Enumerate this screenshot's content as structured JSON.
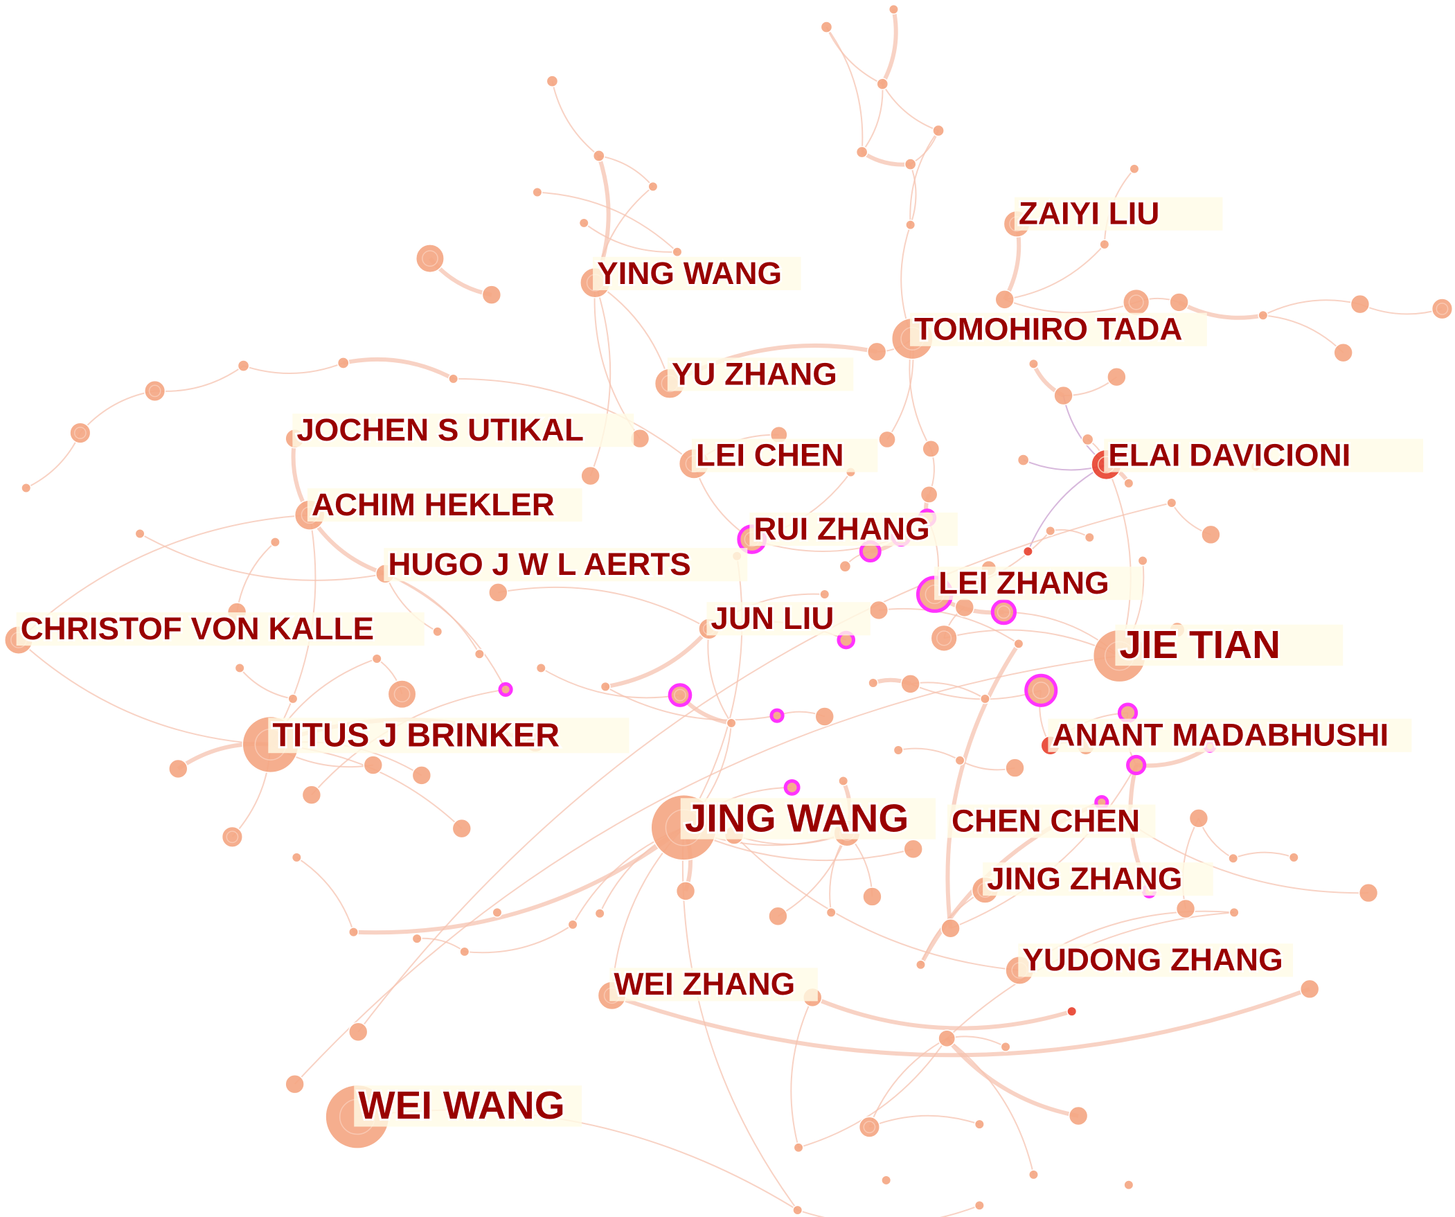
{
  "network": {
    "type": "co-authorship network",
    "colors": {
      "node": "#f4a582",
      "edge": "#f6c3b0",
      "burst_node": "#e8402e",
      "centrality_ring": "#ff33ff",
      "purple_edge": "#c9a0d0",
      "label": "#990000",
      "label_background": "#fffbe6"
    },
    "labels": [
      {
        "name": "ZAIYI LIU"
      },
      {
        "name": "YING WANG"
      },
      {
        "name": "TOMOHIRO TADA"
      },
      {
        "name": "YU ZHANG"
      },
      {
        "name": "JOCHEN S UTIKAL"
      },
      {
        "name": "LEI CHEN"
      },
      {
        "name": "ELAI DAVICIONI"
      },
      {
        "name": "ACHIM HEKLER"
      },
      {
        "name": "RUI ZHANG"
      },
      {
        "name": "HUGO J W L AERTS"
      },
      {
        "name": "LEI ZHANG"
      },
      {
        "name": "CHRISTOF VON KALLE"
      },
      {
        "name": "JUN LIU"
      },
      {
        "name": "JIE TIAN"
      },
      {
        "name": "TITUS J BRINKER"
      },
      {
        "name": "ANANT MADABHUSHI"
      },
      {
        "name": "JING WANG"
      },
      {
        "name": "CHEN CHEN"
      },
      {
        "name": "JING ZHANG"
      },
      {
        "name": "YUDONG ZHANG"
      },
      {
        "name": "WEI ZHANG"
      },
      {
        "name": "WEI WANG"
      }
    ]
  }
}
